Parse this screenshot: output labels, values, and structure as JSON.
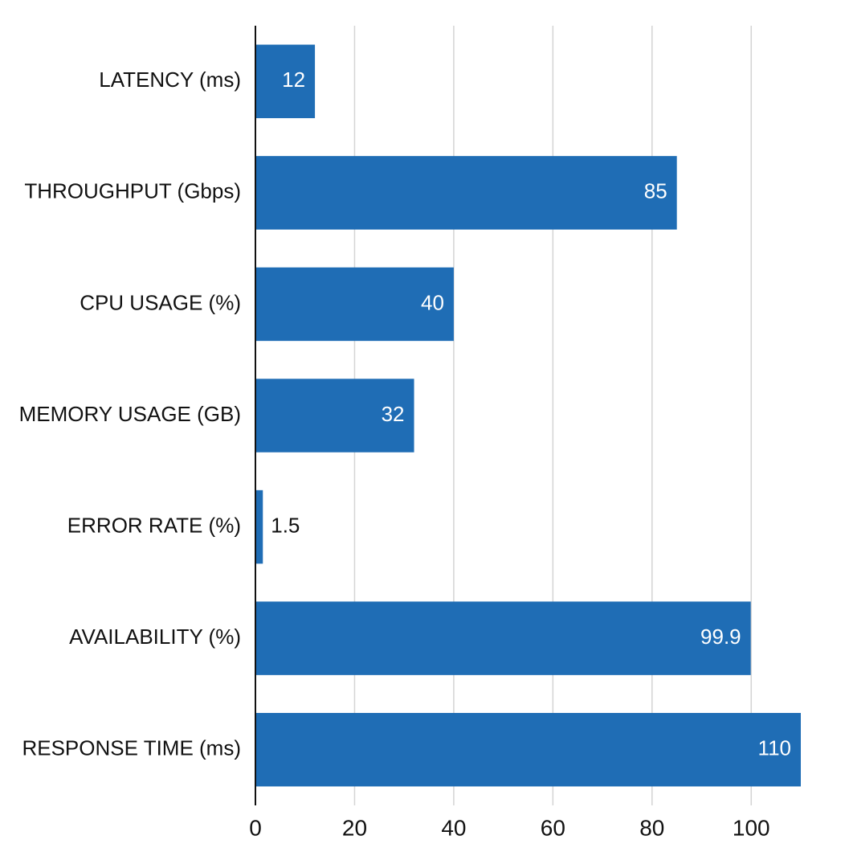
{
  "chart_data": {
    "type": "bar",
    "orientation": "horizontal",
    "categories": [
      "LATENCY (ms)",
      "THROUGHPUT (Gbps)",
      "CPU USAGE (%)",
      "MEMORY USAGE (GB)",
      "ERROR RATE (%)",
      "AVAILABILITY (%)",
      "RESPONSE TIME (ms)"
    ],
    "values": [
      12,
      85,
      40,
      32,
      1.5,
      99.9,
      110
    ],
    "color": "#1f6db5",
    "xlim": [
      0,
      110
    ],
    "xticks": [
      0,
      20,
      40,
      60,
      80,
      100
    ],
    "grid": true
  }
}
